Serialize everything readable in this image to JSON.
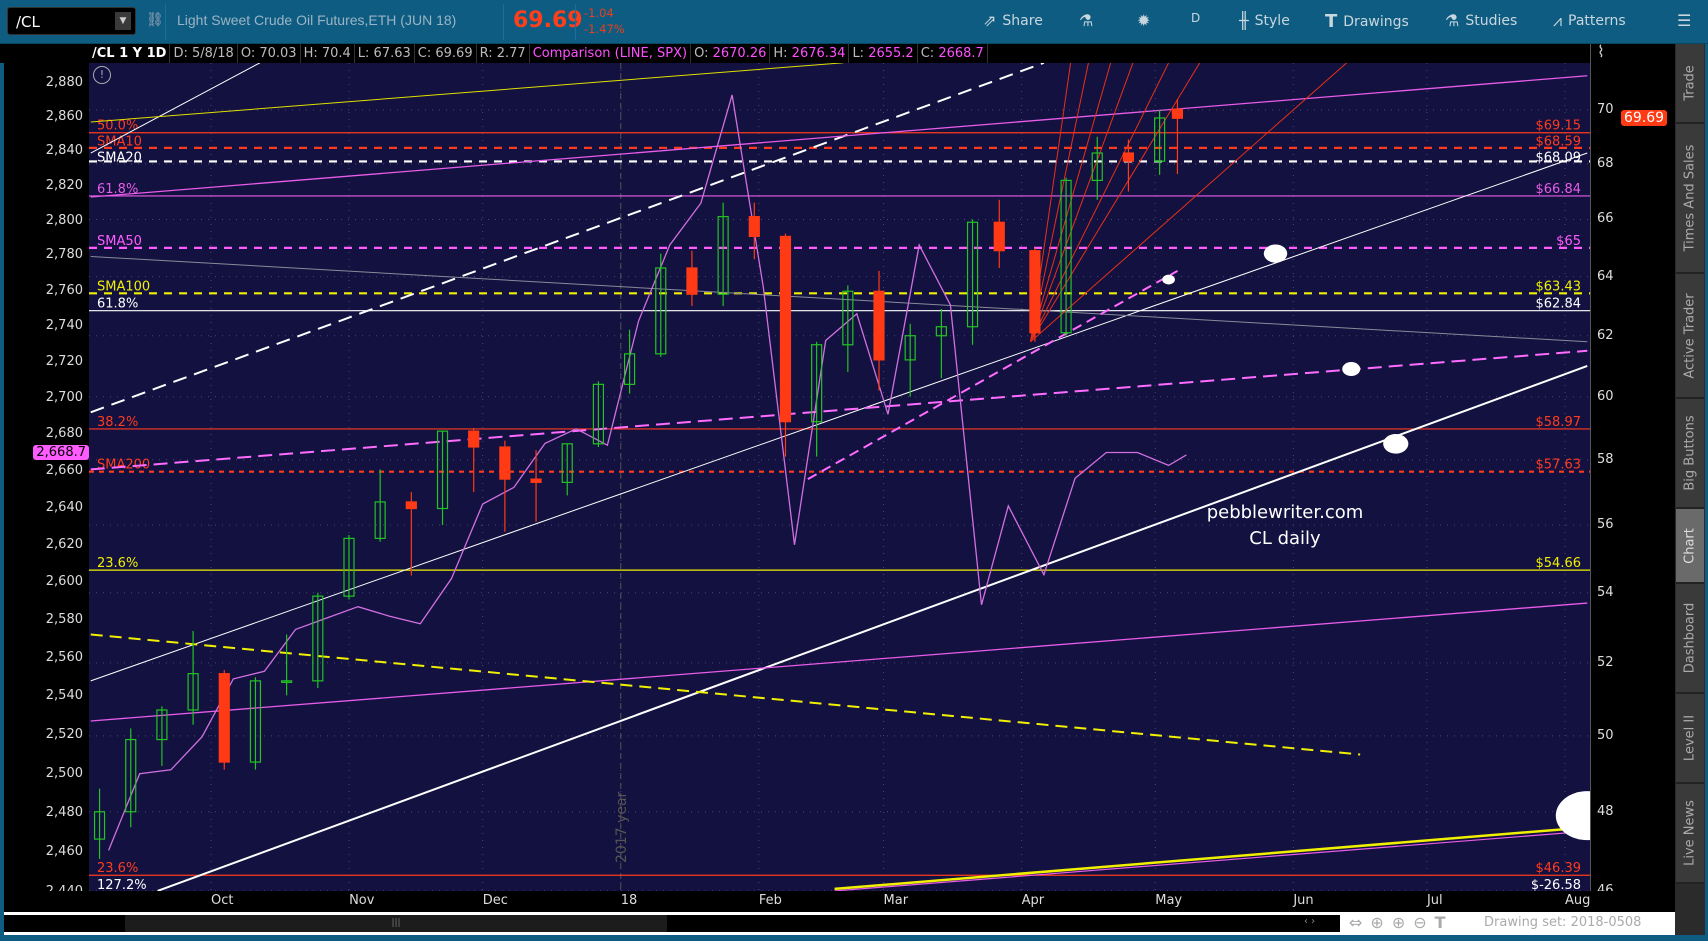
{
  "topbar": {
    "symbol": "/CL",
    "description": "Light Sweet Crude Oil Futures,ETH (JUN 18)",
    "last": "69.69",
    "change": "-1.04",
    "change_pct": "-1.47%",
    "buttons": {
      "share": "Share",
      "timeframe": "D",
      "style": "Style",
      "drawings": "Drawings",
      "studies": "Studies",
      "patterns": "Patterns"
    }
  },
  "inforow": {
    "title": "/CL 1 Y 1D",
    "date": "D: 5/8/18",
    "open": "O: 70.03",
    "high": "H: 70.4",
    "low": "L: 67.63",
    "close": "C: 69.69",
    "range": "R: 2.77",
    "comparison": "Comparison (LINE, SPX)",
    "cmp_open_label": "O:",
    "cmp_open": "2670.26",
    "cmp_high_label": "H:",
    "cmp_high": "2676.34",
    "cmp_low_label": "L:",
    "cmp_low": "2655.2",
    "cmp_close_label": "C:",
    "cmp_close": "2668.7"
  },
  "sidebar": {
    "tabs": [
      "Trade",
      "Times And Sales",
      "Active Trader",
      "Big Buttons",
      "Chart",
      "Dashboard",
      "Level II",
      "Live News"
    ],
    "selected": "Chart"
  },
  "bottom": {
    "drawing_set": "Drawing set: 2018-0508"
  },
  "colors": {
    "bg": "#13113f",
    "up": "#22c322",
    "down": "#ff3a14",
    "red": "#ff3b1f",
    "magenta": "#e75ce8",
    "yellow": "#f0f000",
    "white": "#ffffff",
    "comparison": "#d070e0"
  },
  "chart_data": {
    "type": "candlestick",
    "symbol": "/CL",
    "x_range": [
      "2017-09-04",
      "2018-08-03"
    ],
    "x_ticks": [
      [
        "2017-10-01",
        "Oct"
      ],
      [
        "2017-11-01",
        "Nov"
      ],
      [
        "2017-12-01",
        "Dec"
      ],
      [
        "2018-01-01",
        "18"
      ],
      [
        "2018-02-01",
        "Feb"
      ],
      [
        "2018-03-01",
        "Mar"
      ],
      [
        "2018-04-01",
        "Apr"
      ],
      [
        "2018-05-01",
        "May"
      ],
      [
        "2018-06-01",
        "Jun"
      ],
      [
        "2018-07-01",
        "Jul"
      ],
      [
        "2018-08-01",
        "Aug"
      ]
    ],
    "right_axis": {
      "scale": "log",
      "range": [
        45.5,
        72
      ],
      "ticks": [
        46,
        48,
        50,
        52,
        54,
        56,
        58,
        60,
        62,
        64,
        66,
        68,
        70
      ]
    },
    "left_axis": {
      "scale": "log",
      "range": [
        2436,
        2898
      ],
      "ticks": [
        2440,
        2460,
        2480,
        2500,
        2520,
        2540,
        2560,
        2580,
        2600,
        2620,
        2640,
        2660,
        2680,
        2700,
        2720,
        2740,
        2760,
        2780,
        2800,
        2820,
        2840,
        2860,
        2880
      ]
    },
    "left_axis_labels": [
      "2,440",
      "2,460",
      "2,480",
      "2,500",
      "2,520",
      "2,540",
      "2,560",
      "2,580",
      "2,600",
      "2,620",
      "2,640",
      "2,660",
      "2,680",
      "2,700",
      "2,720",
      "2,740",
      "2,760",
      "2,780",
      "2,800",
      "2,820",
      "2,840",
      "2,860",
      "2,880"
    ],
    "grid": true,
    "last_price_badge": "69.69",
    "comparison_badge": "2,668.7",
    "ohlc_weekly": [
      [
        "2017-09-08",
        47.3,
        48.6,
        46.8,
        48.0
      ],
      [
        "2017-09-15",
        48.0,
        50.2,
        47.6,
        49.9
      ],
      [
        "2017-09-22",
        49.9,
        50.8,
        49.2,
        50.7
      ],
      [
        "2017-09-29",
        50.7,
        52.9,
        50.3,
        51.7
      ],
      [
        "2017-10-06",
        51.7,
        51.8,
        49.1,
        49.3
      ],
      [
        "2017-10-13",
        49.3,
        51.6,
        49.1,
        51.5
      ],
      [
        "2017-10-20",
        51.5,
        52.8,
        51.1,
        51.5
      ],
      [
        "2017-10-27",
        51.5,
        54.0,
        51.3,
        53.9
      ],
      [
        "2017-11-03",
        53.9,
        55.7,
        53.8,
        55.6
      ],
      [
        "2017-11-10",
        55.6,
        57.7,
        55.5,
        56.7
      ],
      [
        "2017-11-17",
        56.7,
        57.0,
        54.5,
        56.5
      ],
      [
        "2017-11-24",
        56.5,
        58.9,
        56.0,
        58.9
      ],
      [
        "2017-12-01",
        58.9,
        59.0,
        57.0,
        58.4
      ],
      [
        "2017-12-08",
        58.4,
        58.6,
        55.8,
        57.4
      ],
      [
        "2017-12-15",
        57.4,
        58.3,
        56.1,
        57.3
      ],
      [
        "2017-12-22",
        57.3,
        58.5,
        56.9,
        58.5
      ],
      [
        "2017-12-29",
        58.5,
        60.5,
        58.4,
        60.4
      ],
      [
        "2018-01-05",
        60.4,
        62.2,
        60.1,
        61.4
      ],
      [
        "2018-01-12",
        61.4,
        64.8,
        61.3,
        64.3
      ],
      [
        "2018-01-19",
        64.3,
        64.9,
        63.0,
        63.4
      ],
      [
        "2018-01-26",
        63.4,
        66.6,
        63.0,
        66.1
      ],
      [
        "2018-02-02",
        66.1,
        66.6,
        64.6,
        65.4
      ],
      [
        "2018-02-09",
        65.4,
        65.5,
        58.1,
        59.2
      ],
      [
        "2018-02-16",
        59.2,
        61.8,
        58.1,
        61.7
      ],
      [
        "2018-02-23",
        61.7,
        63.7,
        60.8,
        63.5
      ],
      [
        "2018-03-02",
        63.5,
        64.2,
        60.2,
        61.2
      ],
      [
        "2018-03-09",
        61.2,
        62.4,
        60.0,
        62.0
      ],
      [
        "2018-03-16",
        62.0,
        62.9,
        60.6,
        62.3
      ],
      [
        "2018-03-23",
        62.3,
        66.0,
        61.7,
        65.9
      ],
      [
        "2018-03-29",
        65.9,
        66.7,
        64.3,
        64.9
      ],
      [
        "2018-04-06",
        64.9,
        65.0,
        61.8,
        62.1
      ],
      [
        "2018-04-13",
        62.1,
        67.5,
        62.0,
        67.4
      ],
      [
        "2018-04-20",
        67.4,
        69.0,
        66.7,
        68.4
      ],
      [
        "2018-04-27",
        68.4,
        68.9,
        67.0,
        68.1
      ],
      [
        "2018-05-04",
        68.1,
        70.0,
        67.6,
        69.7
      ],
      [
        "2018-05-08",
        70.03,
        70.4,
        67.63,
        69.69
      ]
    ],
    "comparison_series": {
      "name": "SPX",
      "points": [
        [
          "2017-09-08",
          2461
        ],
        [
          "2017-09-15",
          2500
        ],
        [
          "2017-09-22",
          2502
        ],
        [
          "2017-09-29",
          2519
        ],
        [
          "2017-10-06",
          2549
        ],
        [
          "2017-10-13",
          2553
        ],
        [
          "2017-10-20",
          2575
        ],
        [
          "2017-10-27",
          2581
        ],
        [
          "2017-11-03",
          2587
        ],
        [
          "2017-11-10",
          2582
        ],
        [
          "2017-11-17",
          2578
        ],
        [
          "2017-11-24",
          2602
        ],
        [
          "2017-12-01",
          2642
        ],
        [
          "2017-12-08",
          2651
        ],
        [
          "2017-12-15",
          2675
        ],
        [
          "2017-12-22",
          2683
        ],
        [
          "2017-12-29",
          2674
        ],
        [
          "2018-01-05",
          2743
        ],
        [
          "2018-01-12",
          2786
        ],
        [
          "2018-01-19",
          2810
        ],
        [
          "2018-01-26",
          2873
        ],
        [
          "2018-02-02",
          2762
        ],
        [
          "2018-02-09",
          2620
        ],
        [
          "2018-02-16",
          2732
        ],
        [
          "2018-02-23",
          2747
        ],
        [
          "2018-03-02",
          2691
        ],
        [
          "2018-03-09",
          2786
        ],
        [
          "2018-03-16",
          2752
        ],
        [
          "2018-03-23",
          2588
        ],
        [
          "2018-03-29",
          2641
        ],
        [
          "2018-04-06",
          2604
        ],
        [
          "2018-04-13",
          2656
        ],
        [
          "2018-04-20",
          2670
        ],
        [
          "2018-04-27",
          2670
        ],
        [
          "2018-05-04",
          2663
        ],
        [
          "2018-05-08",
          2668.7
        ]
      ]
    },
    "levels": [
      {
        "price": 69.15,
        "left": "50.0%",
        "right": "$69.15",
        "color": "#ff3b1f",
        "style": "solid"
      },
      {
        "price": 68.59,
        "left": "SMA10",
        "right": "$68.59",
        "color": "#ff3b1f",
        "style": "dash"
      },
      {
        "price": 68.09,
        "left": "SMA20",
        "right": "$68.09",
        "color": "#ffffff",
        "style": "dash"
      },
      {
        "price": 66.84,
        "left": "61.8%",
        "right": "$66.84",
        "color": "#e75ce8",
        "style": "solid"
      },
      {
        "price": 65,
        "left": "SMA50",
        "right": "$65",
        "color": "#ff5cff",
        "style": "dash"
      },
      {
        "price": 63.43,
        "left": "SMA100",
        "right": "$63.43",
        "color": "#f0f000",
        "style": "dash"
      },
      {
        "price": 62.84,
        "left": "61.8%",
        "right": "$62.84",
        "color": "#ffffff",
        "style": "solid"
      },
      {
        "price": 58.97,
        "left": "38.2%",
        "right": "$58.97",
        "color": "#ff3b1f",
        "style": "solid"
      },
      {
        "price": 57.63,
        "left": "SMA200",
        "right": "$57.63",
        "color": "#ff3b1f",
        "style": "dot"
      },
      {
        "price": 54.66,
        "left": "23.6%",
        "right": "$54.66",
        "color": "#f0f000",
        "style": "solid"
      },
      {
        "price": 46.39,
        "left": "23.6%",
        "right": "$46.39",
        "color": "#ff3b1f",
        "style": "solid",
        "left_below": "127.2%",
        "right_below": "$-26.58"
      }
    ],
    "trendlines": [
      {
        "from": [
          "2017-09-19",
          46.0
        ],
        "to": [
          "2018-08-06",
          61.0
        ],
        "color": "#ffffff",
        "width": 2,
        "dash": ""
      },
      {
        "from": [
          "2017-09-04",
          51.5
        ],
        "to": [
          "2018-08-06",
          68.4
        ],
        "color": "#ffffff",
        "width": 1,
        "dash": ""
      },
      {
        "from": [
          "2017-09-04",
          59.5
        ],
        "to": [
          "2018-04-06",
          71.8
        ],
        "color": "#ffffff",
        "width": 2,
        "dash": "14 8"
      },
      {
        "from": [
          "2017-09-04",
          68.4
        ],
        "to": [
          "2017-10-12",
          71.8
        ],
        "color": "#ffffff",
        "width": 1,
        "dash": ""
      },
      {
        "from": [
          "2017-09-04",
          69.55
        ],
        "to": [
          "2018-02-20",
          71.8
        ],
        "color": "#e0e000",
        "width": 1,
        "dash": ""
      },
      {
        "from": [
          "2017-09-04",
          66.8
        ],
        "to": [
          "2018-08-06",
          71.3
        ],
        "color": "#e75ce8",
        "width": 1.3,
        "dash": ""
      },
      {
        "from": [
          "2017-09-04",
          64.7
        ],
        "to": [
          "2018-08-06",
          61.8
        ],
        "color": "#8a8a9a",
        "width": 1,
        "dash": ""
      },
      {
        "from": [
          "2017-09-04",
          57.7
        ],
        "to": [
          "2018-08-06",
          61.5
        ],
        "color": "#ff6cff",
        "width": 2,
        "dash": "14 7"
      },
      {
        "from": [
          "2018-02-12",
          57.4
        ],
        "to": [
          "2018-05-06",
          64.2
        ],
        "color": "#ff6cff",
        "width": 2,
        "dash": "10 6"
      },
      {
        "from": [
          "2017-09-04",
          50.4
        ],
        "to": [
          "2018-08-06",
          53.7
        ],
        "color": "#e75ce8",
        "width": 1.3,
        "dash": ""
      },
      {
        "from": [
          "2017-09-04",
          52.8
        ],
        "to": [
          "2018-06-16",
          49.5
        ],
        "color": "#f0f000",
        "width": 2,
        "dash": "12 7"
      },
      {
        "from": [
          "2018-02-18",
          46.05
        ],
        "to": [
          "2018-08-06",
          47.6
        ],
        "color": "#f0f000",
        "width": 2.5,
        "dash": ""
      },
      {
        "from": [
          "2018-02-18",
          46.0
        ],
        "to": [
          "2018-08-06",
          47.5
        ],
        "color": "#e75ce8",
        "width": 1.2,
        "dash": ""
      }
    ],
    "fan": {
      "origin": [
        "2018-04-03",
        61.8
      ],
      "targets": [
        [
          "2018-04-12",
          71.8
        ],
        [
          "2018-04-16",
          71.8
        ],
        [
          "2018-04-21",
          71.8
        ],
        [
          "2018-04-26",
          71.8
        ],
        [
          "2018-05-04",
          71.8
        ],
        [
          "2018-05-11",
          71.8
        ],
        [
          "2018-06-13",
          71.8
        ]
      ],
      "color": "#e8301a"
    },
    "markers": [
      [
        "2018-05-28",
        64.8,
        1.3
      ],
      [
        "2018-05-04",
        63.9,
        0.7
      ],
      [
        "2018-06-14",
        60.9,
        1
      ],
      [
        "2018-06-24",
        58.5,
        1.4
      ],
      [
        "2018-08-06",
        47.9,
        3.5
      ]
    ],
    "year_separator": {
      "date": "2018-01-01",
      "label": "2017 year"
    },
    "watermark": [
      "pebblewriter.com",
      "CL daily"
    ]
  }
}
